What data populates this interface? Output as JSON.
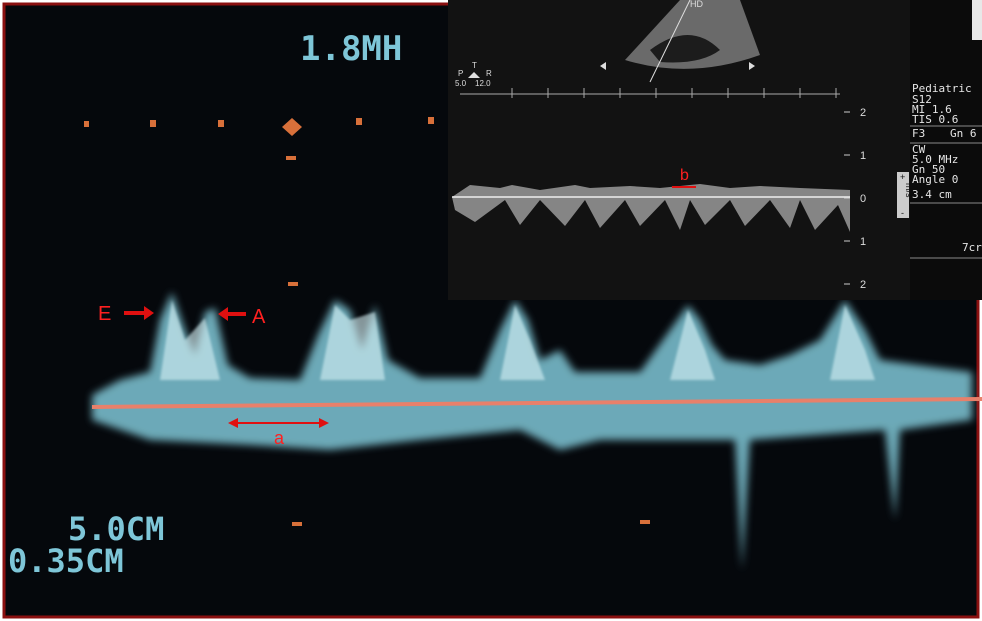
{
  "main": {
    "frequency": "1.8MH",
    "depth": "5.0CM",
    "gate": "0.35CM",
    "label_e": "E",
    "label_a": "A",
    "label_a_interval": "a"
  },
  "inset": {
    "probe_mark": "HD",
    "orient_p": "P",
    "orient_t": "T",
    "orient_r": "R",
    "scale_left": "5.0",
    "scale_right": "12.0",
    "velocity_ticks": [
      "2",
      "1",
      "0",
      "1",
      "2"
    ],
    "unit_plus": "+",
    "unit": "m/s",
    "unit_minus": "-",
    "label_b": "b"
  },
  "side_panel": {
    "lines": [
      "Pediatric",
      "S12",
      "MI 1.6",
      "TIS 0.6",
      "F3",
      "Gn 6",
      "CW",
      "5.0 MHz",
      "Gn 50",
      "Angle 0",
      "3.4 cm",
      "7cr"
    ]
  }
}
